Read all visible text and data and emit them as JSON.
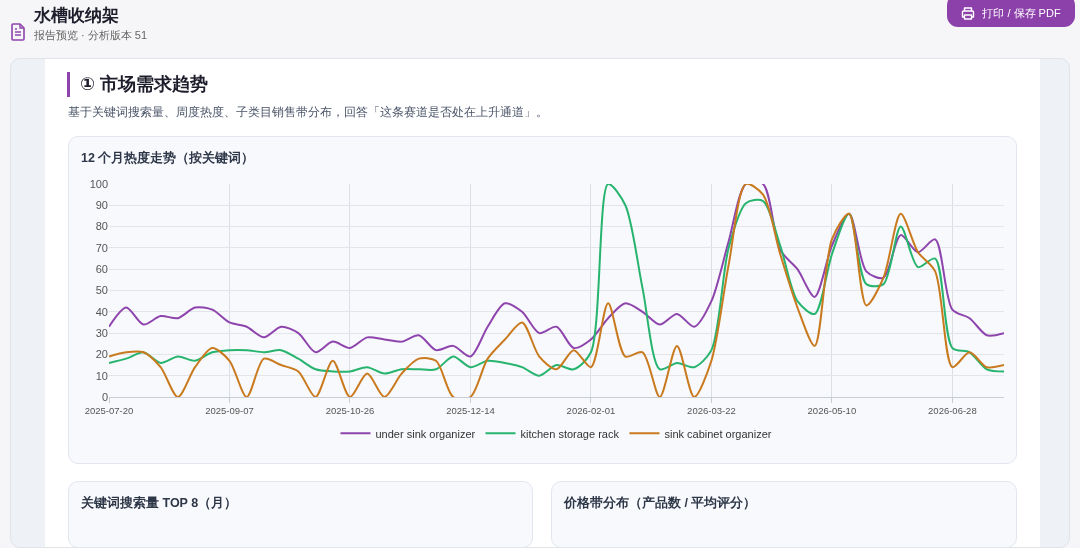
{
  "chart_data": [
    {
      "type": "other",
      "title": "水槽收纳架",
      "subtitle": "报告预览 · 分析版本 51",
      "annotations": [
        "打印 / 保存 PDF"
      ]
    },
    {
      "type": "line",
      "title": "12 个月热度走势（按关键词）",
      "annotations": [
        "① 市场需求趋势",
        "基于关键词搜索量、周度热度、子类目销售带分布，回答「这条赛道是否处在上升通道」。"
      ],
      "categories": [
        "2025-07-20",
        null,
        null,
        null,
        null,
        null,
        null,
        "2025-09-07",
        null,
        null,
        null,
        null,
        null,
        null,
        "2025-10-26",
        null,
        null,
        null,
        null,
        null,
        null,
        "2025-12-14",
        null,
        null,
        null,
        null,
        null,
        null,
        "2026-02-01",
        null,
        null,
        null,
        null,
        null,
        null,
        "2026-03-22",
        null,
        null,
        null,
        null,
        null,
        null,
        "2026-05-10",
        null,
        null,
        null,
        null,
        null,
        null,
        "2026-06-28",
        null,
        null,
        null
      ],
      "series": [
        {
          "name": "under sink organizer",
          "color": "#8e44ad",
          "values": [
            33,
            42,
            34,
            38,
            37,
            42,
            41,
            35,
            33,
            28,
            33,
            30,
            21,
            26,
            23,
            28,
            27,
            26,
            29,
            22,
            24,
            19,
            33,
            44,
            40,
            30,
            33,
            23,
            27,
            37,
            44,
            40,
            34,
            39,
            33,
            45,
            73,
            100,
            100,
            69,
            60,
            47,
            71,
            86,
            59,
            56,
            76,
            68,
            74,
            41,
            37,
            29,
            30
          ]
        },
        {
          "name": "kitchen storage rack",
          "color": "#27b46e",
          "values": [
            16,
            18,
            21,
            16,
            19,
            17,
            21,
            22,
            22,
            21,
            22,
            18,
            13,
            12,
            12,
            14,
            11,
            13,
            13,
            13,
            19,
            14,
            17,
            16,
            14,
            10,
            15,
            13,
            21,
            100,
            90,
            51,
            13,
            16,
            14,
            22,
            70,
            91,
            92,
            71,
            45,
            39,
            67,
            86,
            53,
            53,
            80,
            61,
            65,
            23,
            21,
            13,
            12
          ]
        },
        {
          "name": "sink cabinet organizer",
          "color": "#c97a1e",
          "values": [
            19,
            21,
            21,
            14,
            0,
            14,
            23,
            17,
            0,
            18,
            15,
            12,
            0,
            17,
            0,
            11,
            0,
            11,
            18,
            17,
            0,
            0,
            18,
            27,
            35,
            19,
            13,
            22,
            14,
            44,
            19,
            21,
            0,
            24,
            0,
            17,
            62,
            100,
            95,
            67,
            42,
            24,
            74,
            86,
            43,
            56,
            86,
            68,
            59,
            14,
            21,
            14,
            15
          ]
        }
      ],
      "ylim": [
        0,
        100
      ],
      "yticks": [
        0,
        10,
        20,
        30,
        40,
        50,
        60,
        70,
        80,
        90,
        100
      ],
      "grid": true,
      "legend": "bottom"
    },
    {
      "type": "other",
      "title": "关键词搜索量 TOP 8（月）"
    },
    {
      "type": "other",
      "title": "价格带分布（产品数 / 平均评分）"
    }
  ]
}
